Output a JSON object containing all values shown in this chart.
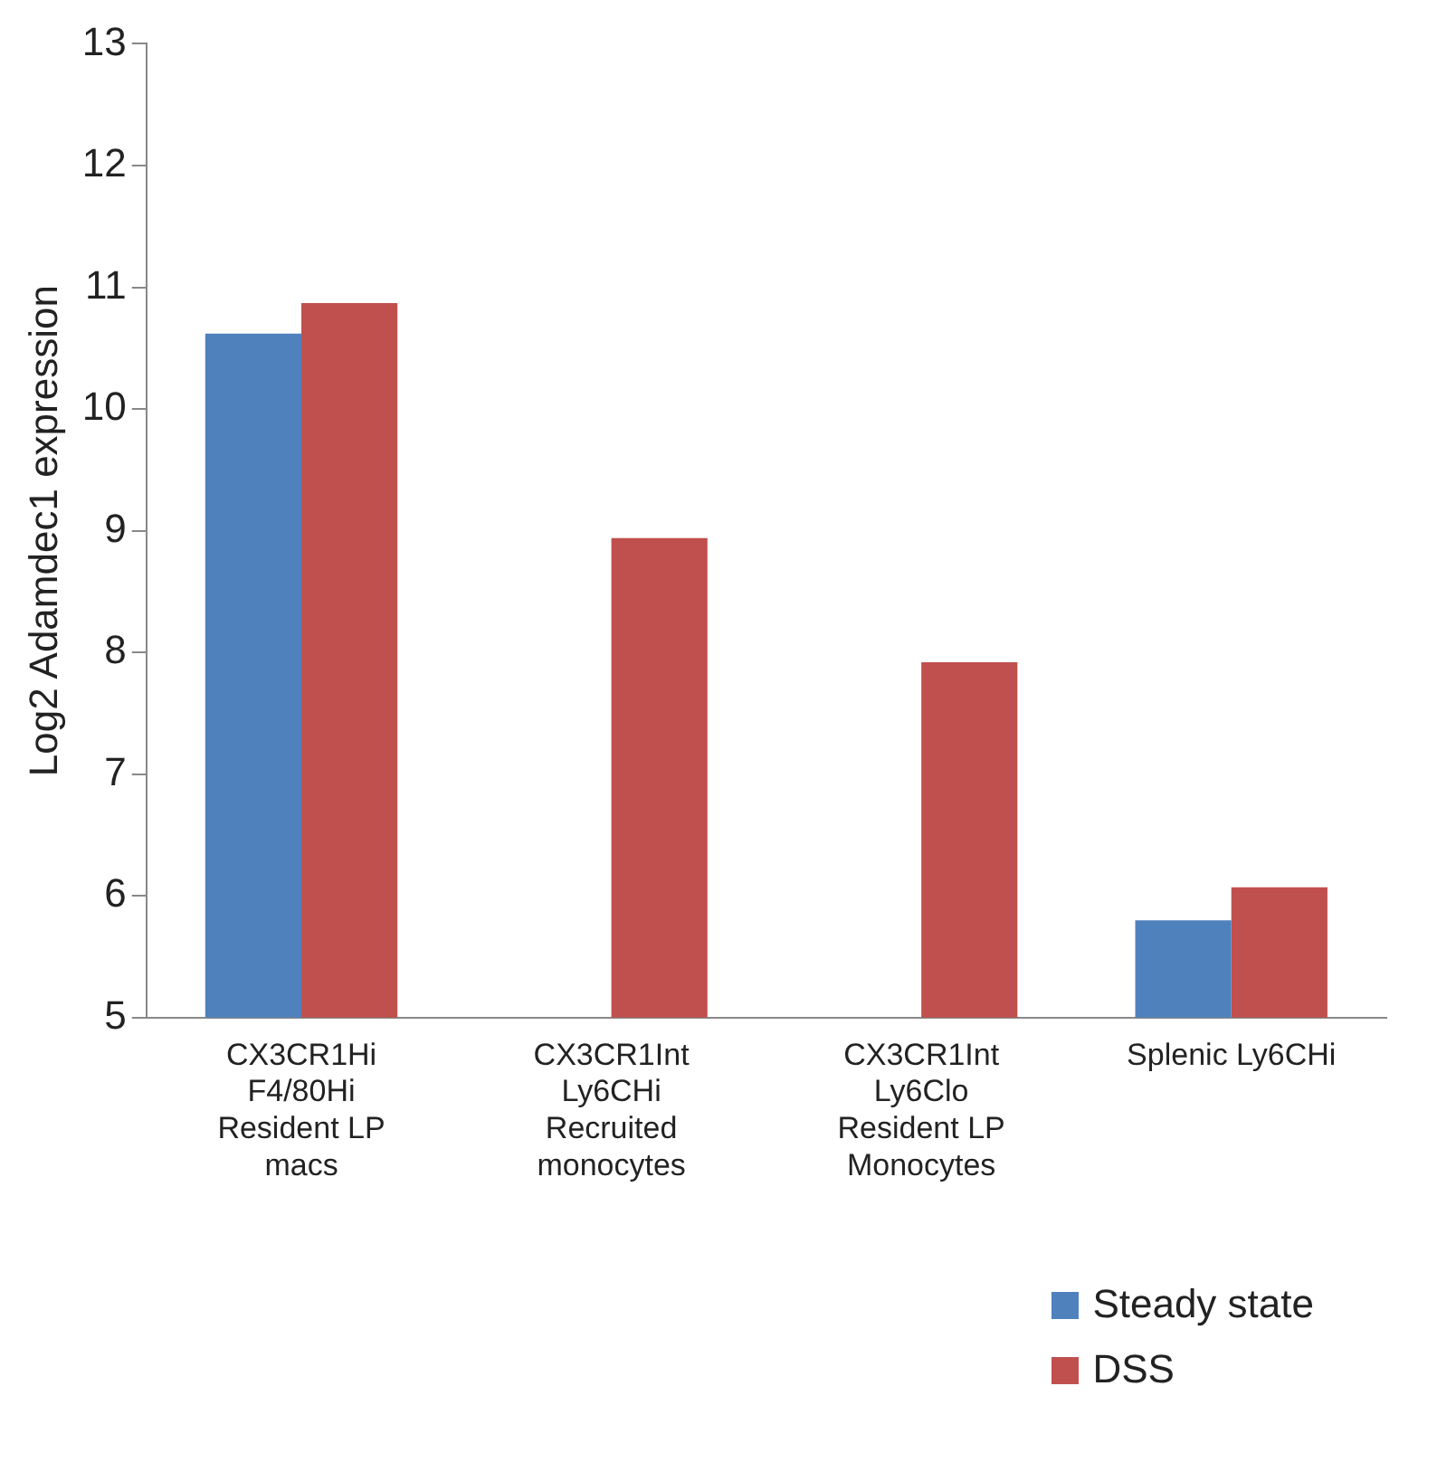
{
  "chart_data": {
    "type": "bar",
    "ylabel": "Log2 Adamdec1 expression",
    "categories": [
      "CX3CR1Hi\nF4/80Hi\nResident LP\nmacs",
      "CX3CR1Int\nLy6CHi\nRecruited\nmonocytes",
      "CX3CR1Int\nLy6Clo\nResident LP\nMonocytes",
      "Splenic Ly6CHi"
    ],
    "series": [
      {
        "name": "Steady state",
        "color": "#4f81bd",
        "values": [
          10.62,
          null,
          null,
          5.8
        ]
      },
      {
        "name": "DSS",
        "color": "#c0504d",
        "values": [
          10.87,
          8.94,
          7.92,
          6.07
        ]
      }
    ],
    "ylim": [
      5,
      13
    ],
    "yticks": [
      5,
      6,
      7,
      8,
      9,
      10,
      11,
      12,
      13
    ],
    "legend": "bottom right"
  }
}
